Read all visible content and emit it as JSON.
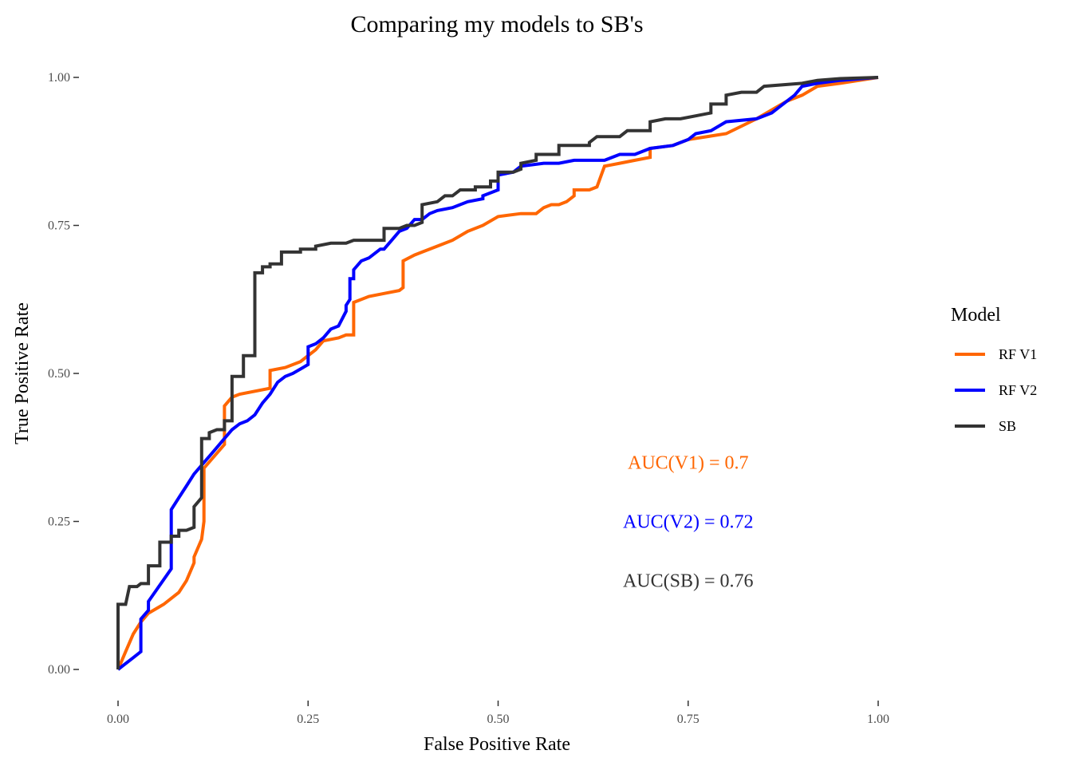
{
  "chart_data": {
    "type": "line",
    "title": "Comparing my models to SB's",
    "xlabel": "False Positive Rate",
    "ylabel": "True Positive Rate",
    "xlim": [
      0,
      1
    ],
    "ylim": [
      0,
      1
    ],
    "x_ticks": [
      0,
      0.25,
      0.5,
      0.75,
      1
    ],
    "y_ticks": [
      0,
      0.25,
      0.5,
      0.75,
      1
    ],
    "x_tick_labels": [
      "0.00",
      "0.25",
      "0.50",
      "0.75",
      "1.00"
    ],
    "y_tick_labels": [
      "0.00",
      "0.25",
      "0.50",
      "0.75",
      "1.00"
    ],
    "grid": false,
    "legend": {
      "title": "Model",
      "position": "right"
    },
    "series": [
      {
        "name": "RF V1",
        "color": "#FF6600",
        "points": [
          [
            0,
            0
          ],
          [
            0.01,
            0.03
          ],
          [
            0.02,
            0.06
          ],
          [
            0.03,
            0.08
          ],
          [
            0.04,
            0.095
          ],
          [
            0.06,
            0.11
          ],
          [
            0.08,
            0.13
          ],
          [
            0.09,
            0.15
          ],
          [
            0.1,
            0.18
          ],
          [
            0.1,
            0.19
          ],
          [
            0.11,
            0.22
          ],
          [
            0.113,
            0.25
          ],
          [
            0.113,
            0.34
          ],
          [
            0.14,
            0.38
          ],
          [
            0.14,
            0.445
          ],
          [
            0.15,
            0.46
          ],
          [
            0.16,
            0.465
          ],
          [
            0.2,
            0.475
          ],
          [
            0.2,
            0.505
          ],
          [
            0.22,
            0.51
          ],
          [
            0.24,
            0.52
          ],
          [
            0.26,
            0.54
          ],
          [
            0.27,
            0.555
          ],
          [
            0.29,
            0.56
          ],
          [
            0.3,
            0.565
          ],
          [
            0.31,
            0.565
          ],
          [
            0.31,
            0.62
          ],
          [
            0.33,
            0.63
          ],
          [
            0.35,
            0.635
          ],
          [
            0.37,
            0.64
          ],
          [
            0.375,
            0.645
          ],
          [
            0.375,
            0.69
          ],
          [
            0.39,
            0.7
          ],
          [
            0.4,
            0.705
          ],
          [
            0.42,
            0.715
          ],
          [
            0.44,
            0.725
          ],
          [
            0.46,
            0.74
          ],
          [
            0.48,
            0.75
          ],
          [
            0.5,
            0.765
          ],
          [
            0.53,
            0.77
          ],
          [
            0.55,
            0.77
          ],
          [
            0.56,
            0.78
          ],
          [
            0.57,
            0.785
          ],
          [
            0.58,
            0.785
          ],
          [
            0.59,
            0.79
          ],
          [
            0.6,
            0.8
          ],
          [
            0.6,
            0.81
          ],
          [
            0.62,
            0.81
          ],
          [
            0.63,
            0.815
          ],
          [
            0.64,
            0.85
          ],
          [
            0.66,
            0.855
          ],
          [
            0.68,
            0.86
          ],
          [
            0.7,
            0.865
          ],
          [
            0.7,
            0.88
          ],
          [
            0.73,
            0.885
          ],
          [
            0.75,
            0.895
          ],
          [
            0.8,
            0.905
          ],
          [
            0.84,
            0.93
          ],
          [
            0.88,
            0.96
          ],
          [
            0.9,
            0.97
          ],
          [
            0.92,
            0.985
          ],
          [
            0.95,
            0.99
          ],
          [
            1,
            1
          ]
        ]
      },
      {
        "name": "RF V2",
        "color": "#0000FF",
        "points": [
          [
            0,
            0
          ],
          [
            0.02,
            0.02
          ],
          [
            0.03,
            0.03
          ],
          [
            0.03,
            0.085
          ],
          [
            0.04,
            0.1
          ],
          [
            0.04,
            0.115
          ],
          [
            0.07,
            0.17
          ],
          [
            0.07,
            0.27
          ],
          [
            0.08,
            0.29
          ],
          [
            0.085,
            0.3
          ],
          [
            0.09,
            0.31
          ],
          [
            0.1,
            0.33
          ],
          [
            0.11,
            0.345
          ],
          [
            0.12,
            0.36
          ],
          [
            0.13,
            0.375
          ],
          [
            0.14,
            0.39
          ],
          [
            0.15,
            0.405
          ],
          [
            0.16,
            0.415
          ],
          [
            0.17,
            0.42
          ],
          [
            0.18,
            0.43
          ],
          [
            0.19,
            0.45
          ],
          [
            0.2,
            0.465
          ],
          [
            0.21,
            0.485
          ],
          [
            0.22,
            0.495
          ],
          [
            0.23,
            0.5
          ],
          [
            0.25,
            0.515
          ],
          [
            0.25,
            0.545
          ],
          [
            0.26,
            0.55
          ],
          [
            0.27,
            0.56
          ],
          [
            0.28,
            0.575
          ],
          [
            0.29,
            0.58
          ],
          [
            0.3,
            0.605
          ],
          [
            0.3,
            0.615
          ],
          [
            0.305,
            0.625
          ],
          [
            0.305,
            0.66
          ],
          [
            0.31,
            0.66
          ],
          [
            0.31,
            0.675
          ],
          [
            0.32,
            0.69
          ],
          [
            0.33,
            0.695
          ],
          [
            0.34,
            0.705
          ],
          [
            0.345,
            0.71
          ],
          [
            0.35,
            0.71
          ],
          [
            0.36,
            0.725
          ],
          [
            0.37,
            0.74
          ],
          [
            0.38,
            0.745
          ],
          [
            0.39,
            0.76
          ],
          [
            0.4,
            0.76
          ],
          [
            0.41,
            0.77
          ],
          [
            0.42,
            0.775
          ],
          [
            0.44,
            0.78
          ],
          [
            0.46,
            0.79
          ],
          [
            0.48,
            0.795
          ],
          [
            0.48,
            0.8
          ],
          [
            0.5,
            0.81
          ],
          [
            0.5,
            0.835
          ],
          [
            0.52,
            0.84
          ],
          [
            0.53,
            0.85
          ],
          [
            0.56,
            0.855
          ],
          [
            0.58,
            0.855
          ],
          [
            0.6,
            0.86
          ],
          [
            0.64,
            0.86
          ],
          [
            0.66,
            0.87
          ],
          [
            0.68,
            0.87
          ],
          [
            0.7,
            0.88
          ],
          [
            0.73,
            0.885
          ],
          [
            0.75,
            0.895
          ],
          [
            0.76,
            0.905
          ],
          [
            0.78,
            0.91
          ],
          [
            0.8,
            0.925
          ],
          [
            0.84,
            0.93
          ],
          [
            0.86,
            0.94
          ],
          [
            0.87,
            0.95
          ],
          [
            0.89,
            0.97
          ],
          [
            0.9,
            0.985
          ],
          [
            0.92,
            0.99
          ],
          [
            0.95,
            0.995
          ],
          [
            1,
            1
          ]
        ]
      },
      {
        "name": "SB",
        "color": "#333333",
        "points": [
          [
            0,
            0
          ],
          [
            0,
            0.11
          ],
          [
            0.01,
            0.11
          ],
          [
            0.015,
            0.14
          ],
          [
            0.025,
            0.14
          ],
          [
            0.03,
            0.145
          ],
          [
            0.04,
            0.145
          ],
          [
            0.04,
            0.175
          ],
          [
            0.055,
            0.175
          ],
          [
            0.055,
            0.215
          ],
          [
            0.07,
            0.215
          ],
          [
            0.07,
            0.225
          ],
          [
            0.08,
            0.225
          ],
          [
            0.08,
            0.235
          ],
          [
            0.09,
            0.235
          ],
          [
            0.09,
            0.235
          ],
          [
            0.1,
            0.24
          ],
          [
            0.1,
            0.275
          ],
          [
            0.11,
            0.29
          ],
          [
            0.11,
            0.39
          ],
          [
            0.12,
            0.39
          ],
          [
            0.12,
            0.4
          ],
          [
            0.13,
            0.405
          ],
          [
            0.14,
            0.405
          ],
          [
            0.14,
            0.42
          ],
          [
            0.15,
            0.42
          ],
          [
            0.15,
            0.495
          ],
          [
            0.165,
            0.495
          ],
          [
            0.165,
            0.53
          ],
          [
            0.18,
            0.53
          ],
          [
            0.18,
            0.67
          ],
          [
            0.19,
            0.67
          ],
          [
            0.19,
            0.68
          ],
          [
            0.2,
            0.68
          ],
          [
            0.2,
            0.685
          ],
          [
            0.215,
            0.685
          ],
          [
            0.215,
            0.705
          ],
          [
            0.24,
            0.705
          ],
          [
            0.24,
            0.71
          ],
          [
            0.26,
            0.71
          ],
          [
            0.26,
            0.715
          ],
          [
            0.28,
            0.72
          ],
          [
            0.3,
            0.72
          ],
          [
            0.31,
            0.725
          ],
          [
            0.35,
            0.725
          ],
          [
            0.35,
            0.745
          ],
          [
            0.37,
            0.745
          ],
          [
            0.38,
            0.75
          ],
          [
            0.39,
            0.75
          ],
          [
            0.4,
            0.755
          ],
          [
            0.4,
            0.785
          ],
          [
            0.42,
            0.79
          ],
          [
            0.43,
            0.8
          ],
          [
            0.44,
            0.8
          ],
          [
            0.45,
            0.81
          ],
          [
            0.47,
            0.81
          ],
          [
            0.47,
            0.815
          ],
          [
            0.49,
            0.815
          ],
          [
            0.49,
            0.825
          ],
          [
            0.5,
            0.825
          ],
          [
            0.5,
            0.84
          ],
          [
            0.52,
            0.84
          ],
          [
            0.53,
            0.845
          ],
          [
            0.53,
            0.855
          ],
          [
            0.55,
            0.86
          ],
          [
            0.55,
            0.87
          ],
          [
            0.58,
            0.87
          ],
          [
            0.58,
            0.885
          ],
          [
            0.62,
            0.885
          ],
          [
            0.62,
            0.89
          ],
          [
            0.63,
            0.9
          ],
          [
            0.66,
            0.9
          ],
          [
            0.67,
            0.91
          ],
          [
            0.7,
            0.91
          ],
          [
            0.7,
            0.925
          ],
          [
            0.72,
            0.93
          ],
          [
            0.74,
            0.93
          ],
          [
            0.76,
            0.935
          ],
          [
            0.78,
            0.94
          ],
          [
            0.78,
            0.955
          ],
          [
            0.8,
            0.955
          ],
          [
            0.8,
            0.97
          ],
          [
            0.82,
            0.975
          ],
          [
            0.84,
            0.975
          ],
          [
            0.85,
            0.985
          ],
          [
            0.9,
            0.99
          ],
          [
            0.92,
            0.995
          ],
          [
            0.95,
            0.998
          ],
          [
            1,
            1
          ]
        ]
      }
    ],
    "annotations": [
      {
        "text": "AUC(V1) =  0.7",
        "color": "#FF6600",
        "x": 0.75,
        "y": 0.35
      },
      {
        "text": "AUC(V2) =  0.72",
        "color": "#0000FF",
        "x": 0.75,
        "y": 0.25
      },
      {
        "text": "AUC(SB) =  0.76",
        "color": "#333333",
        "x": 0.75,
        "y": 0.15
      }
    ]
  }
}
